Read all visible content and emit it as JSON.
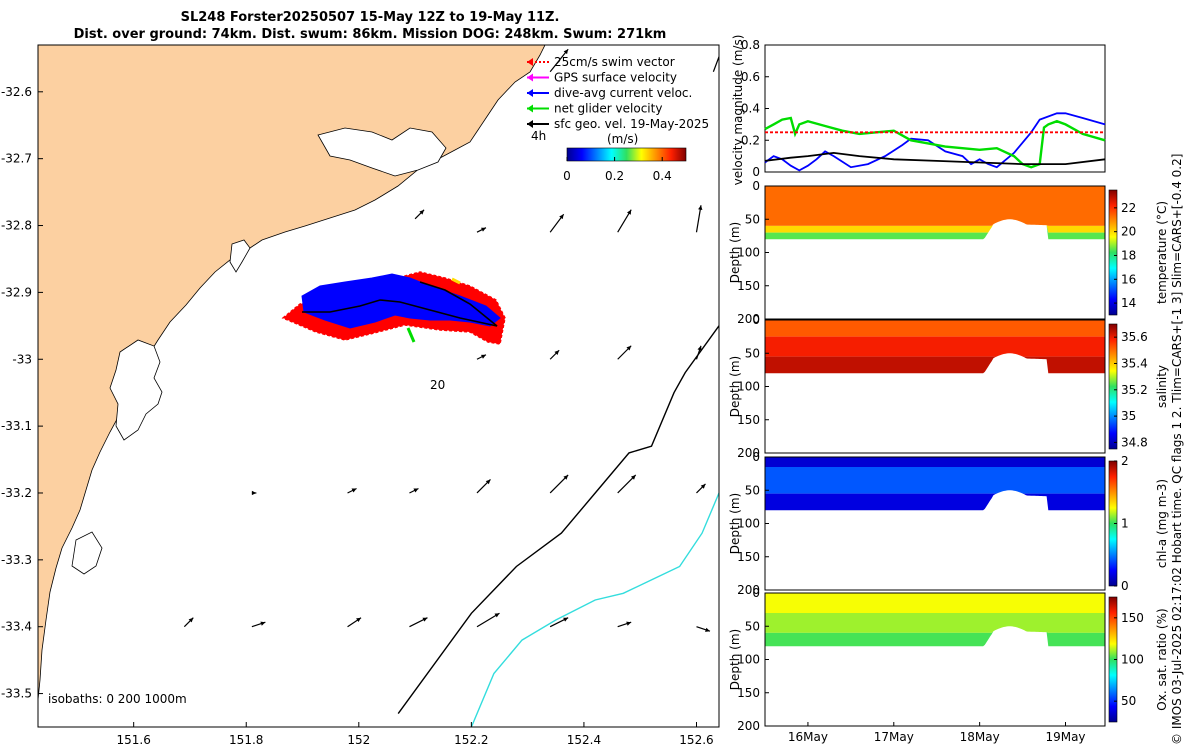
{
  "title_line1": "SL248 Forster20250507 15-May 12Z to 19-May 11Z.",
  "title_line2": "Dist. over ground: 74km. Dist. swum: 86km. Mission DOG: 248km. Swum: 271km",
  "credit": "© IMOS 03-Jul-2025 02:17:02 Hobart time. QC flags 1  2. Tlim=CARS+[-1 3] Slim=CARS+[-0.4 0.2]",
  "colors": {
    "land": "#fcd0a1",
    "swim_vector": "#ff0000",
    "gps_surface": "#ff00ff",
    "dive_avg": "#0000ff",
    "net_glider": "#00dd00",
    "sfc_geo": "#000000",
    "isobath_200": "#000000",
    "isobath_1000": "#33dddd"
  },
  "chart_data": [
    {
      "type": "map",
      "x_ticks": [
        "151.6",
        "151.8",
        "152",
        "152.2",
        "152.4",
        "152.6"
      ],
      "x_tick_values": [
        151.6,
        151.8,
        152.0,
        152.2,
        152.4,
        152.6
      ],
      "y_ticks": [
        "-32.6",
        "-32.7",
        "-32.8",
        "-32.9",
        "-33",
        "-33.1",
        "-33.2",
        "-33.3",
        "-33.4",
        "-33.5"
      ],
      "y_tick_values": [
        -32.6,
        -32.7,
        -32.8,
        -32.9,
        -33.0,
        -33.1,
        -33.2,
        -33.3,
        -33.4,
        -33.5
      ],
      "xlim": [
        151.43,
        152.64
      ],
      "ylim": [
        -33.55,
        -32.53
      ],
      "legend": [
        {
          "key": "swim_vector",
          "label": "25cm/s swim vector"
        },
        {
          "key": "gps_surface",
          "label": "GPS surface velocity"
        },
        {
          "key": "dive_avg",
          "label": "dive-avg current veloc."
        },
        {
          "key": "net_glider",
          "label": "net glider velocity"
        },
        {
          "key": "sfc_geo",
          "label": "sfc geo. vel. 19-May-2025"
        }
      ],
      "legend_time": "4h",
      "colorbar_label": "(m/s)",
      "colorbar_ticks": [
        "0",
        "0.2",
        "0.4"
      ],
      "colorbar_tick_values": [
        0,
        0.2,
        0.4
      ],
      "colorbar_range": [
        0,
        0.5
      ],
      "contour_label": "20",
      "isobaths_label": "isobaths: 0   200  1000m",
      "isobath_200": [
        [
          152.07,
          -33.53
        ],
        [
          152.2,
          -33.38
        ],
        [
          152.28,
          -33.31
        ],
        [
          152.36,
          -33.26
        ],
        [
          152.42,
          -33.2
        ],
        [
          152.48,
          -33.14
        ],
        [
          152.52,
          -33.13
        ],
        [
          152.56,
          -33.05
        ],
        [
          152.58,
          -33.02
        ],
        [
          152.64,
          -32.95
        ]
      ],
      "isobath_1000": [
        [
          152.2,
          -33.55
        ],
        [
          152.24,
          -33.47
        ],
        [
          152.29,
          -33.42
        ],
        [
          152.35,
          -33.39
        ],
        [
          152.42,
          -33.36
        ],
        [
          152.47,
          -33.35
        ],
        [
          152.52,
          -33.33
        ],
        [
          152.57,
          -33.31
        ],
        [
          152.61,
          -33.26
        ],
        [
          152.64,
          -33.2
        ]
      ],
      "geo_vectors": [
        [
          152.34,
          -32.57,
          0.04,
          0.05
        ],
        [
          152.63,
          -32.57,
          0.03,
          0.08
        ],
        [
          152.1,
          -32.79,
          0.02,
          0.02
        ],
        [
          152.21,
          -32.81,
          0.02,
          0.01
        ],
        [
          152.34,
          -32.81,
          0.03,
          0.04
        ],
        [
          152.46,
          -32.81,
          0.03,
          0.05
        ],
        [
          152.6,
          -32.81,
          0.01,
          0.06
        ],
        [
          152.21,
          -33.0,
          0.02,
          0.01
        ],
        [
          152.34,
          -33.0,
          0.02,
          0.02
        ],
        [
          152.46,
          -33.0,
          0.03,
          0.03
        ],
        [
          152.6,
          -33.0,
          0.01,
          0.03
        ],
        [
          151.81,
          -33.2,
          0.01,
          0.0
        ],
        [
          151.98,
          -33.2,
          0.02,
          0.01
        ],
        [
          152.09,
          -33.2,
          0.02,
          0.01
        ],
        [
          152.21,
          -33.2,
          0.03,
          0.03
        ],
        [
          152.34,
          -33.2,
          0.04,
          0.04
        ],
        [
          152.46,
          -33.2,
          0.04,
          0.04
        ],
        [
          152.6,
          -33.2,
          0.02,
          0.02
        ],
        [
          151.69,
          -33.4,
          0.02,
          0.02
        ],
        [
          151.81,
          -33.4,
          0.03,
          0.01
        ],
        [
          151.98,
          -33.4,
          0.03,
          0.02
        ],
        [
          152.09,
          -33.4,
          0.04,
          0.02
        ],
        [
          152.21,
          -33.4,
          0.05,
          0.03
        ],
        [
          152.34,
          -33.4,
          0.04,
          0.02
        ],
        [
          152.46,
          -33.4,
          0.03,
          0.01
        ],
        [
          152.6,
          -33.4,
          0.03,
          -0.01
        ]
      ]
    },
    {
      "type": "line",
      "ylabel": "velocity magnitude (m/s)",
      "ylim": [
        0,
        0.8
      ],
      "y_ticks": [
        "0",
        "0.2",
        "0.4",
        "0.6",
        "0.8"
      ],
      "y_tick_values": [
        0,
        0.2,
        0.4,
        0.6,
        0.8
      ],
      "xlim": [
        15.5,
        19.46
      ],
      "series": [
        {
          "name": "dive-avg current veloc.",
          "color": "#0000ff",
          "x": [
            15.5,
            15.6,
            15.7,
            15.8,
            15.9,
            16.0,
            16.1,
            16.2,
            16.3,
            16.5,
            16.7,
            16.9,
            17.1,
            17.2,
            17.4,
            17.6,
            17.8,
            17.9,
            18.0,
            18.1,
            18.2,
            18.4,
            18.6,
            18.7,
            18.9,
            19.0,
            19.2,
            19.46
          ],
          "y": [
            0.06,
            0.1,
            0.08,
            0.04,
            0.01,
            0.04,
            0.08,
            0.13,
            0.1,
            0.03,
            0.05,
            0.1,
            0.17,
            0.21,
            0.2,
            0.13,
            0.1,
            0.05,
            0.08,
            0.05,
            0.03,
            0.12,
            0.25,
            0.33,
            0.37,
            0.37,
            0.34,
            0.3
          ]
        },
        {
          "name": "net glider velocity",
          "color": "#00dd00",
          "x": [
            15.5,
            15.6,
            15.7,
            15.8,
            15.85,
            15.9,
            16.0,
            16.2,
            16.4,
            16.6,
            16.8,
            17.0,
            17.2,
            17.4,
            17.6,
            17.8,
            18.0,
            18.2,
            18.4,
            18.5,
            18.6,
            18.7,
            18.75,
            18.8,
            18.9,
            19.0,
            19.2,
            19.46
          ],
          "y": [
            0.27,
            0.3,
            0.33,
            0.34,
            0.24,
            0.3,
            0.32,
            0.29,
            0.26,
            0.24,
            0.25,
            0.26,
            0.2,
            0.18,
            0.16,
            0.15,
            0.14,
            0.15,
            0.1,
            0.05,
            0.03,
            0.05,
            0.28,
            0.3,
            0.32,
            0.3,
            0.24,
            0.2
          ]
        },
        {
          "name": "25cm/s swim vector",
          "color": "#ff0000",
          "dashed": true,
          "x": [
            15.5,
            19.46
          ],
          "y": [
            0.25,
            0.25
          ]
        },
        {
          "name": "sfc geo. vel. 19-May-2025",
          "color": "#000000",
          "x": [
            15.5,
            15.8,
            16.0,
            16.3,
            16.6,
            17.0,
            17.5,
            18.0,
            18.5,
            19.0,
            19.46
          ],
          "y": [
            0.07,
            0.09,
            0.1,
            0.12,
            0.1,
            0.08,
            0.07,
            0.06,
            0.05,
            0.05,
            0.08
          ]
        }
      ]
    },
    {
      "type": "heatmap",
      "ylabel": "Depth (m)",
      "cbar_label": "temperature (°C)",
      "cbar_ticks": [
        "14",
        "16",
        "18",
        "20",
        "22"
      ],
      "cbar_tick_values": [
        14,
        16,
        18,
        20,
        22
      ],
      "clim": [
        13,
        23.5
      ],
      "ylim": [
        0,
        200
      ],
      "y_ticks": [
        "0",
        "50",
        "100",
        "150",
        "200"
      ],
      "y_tick_values": [
        0,
        50,
        100,
        150,
        200
      ],
      "bands": [
        [
          0,
          60,
          21.3
        ],
        [
          60,
          70,
          20.0
        ],
        [
          70,
          80,
          18.5
        ]
      ]
    },
    {
      "type": "heatmap",
      "ylabel": "Depth (m)",
      "cbar_label": "salinity",
      "cbar_ticks": [
        "34.8",
        "35",
        "35.2",
        "35.4",
        "35.6"
      ],
      "cbar_tick_values": [
        34.8,
        35.0,
        35.2,
        35.4,
        35.6
      ],
      "clim": [
        34.75,
        35.7
      ],
      "ylim": [
        0,
        200
      ],
      "y_ticks": [
        "0",
        "50",
        "100",
        "150",
        "200"
      ],
      "y_tick_values": [
        0,
        50,
        100,
        150,
        200
      ],
      "bands": [
        [
          0,
          25,
          35.52
        ],
        [
          25,
          55,
          35.59
        ],
        [
          55,
          80,
          35.64
        ]
      ]
    },
    {
      "type": "heatmap",
      "ylabel": "Depth (m)",
      "cbar_label": "chl-a (mg m-3)",
      "cbar_ticks": [
        "0",
        "1",
        "2"
      ],
      "cbar_tick_values": [
        0,
        1,
        2
      ],
      "clim": [
        0,
        2
      ],
      "ylim": [
        0,
        200
      ],
      "y_ticks": [
        "0",
        "50",
        "100",
        "150",
        "200"
      ],
      "y_tick_values": [
        0,
        50,
        100,
        150,
        200
      ],
      "bands": [
        [
          0,
          15,
          0.15
        ],
        [
          15,
          55,
          0.42
        ],
        [
          55,
          80,
          0.18
        ]
      ]
    },
    {
      "type": "heatmap",
      "ylabel": "Depth (m)",
      "cbar_label": "Ox. sat. ratio (%)",
      "cbar_ticks": [
        "50",
        "100",
        "150"
      ],
      "cbar_tick_values": [
        50,
        100,
        150
      ],
      "clim": [
        25,
        175
      ],
      "ylim": [
        0,
        200
      ],
      "y_ticks": [
        "0",
        "50",
        "100",
        "150",
        "200"
      ],
      "y_tick_values": [
        0,
        50,
        100,
        150,
        200
      ],
      "bands": [
        [
          0,
          30,
          118
        ],
        [
          30,
          60,
          110
        ],
        [
          60,
          80,
          102
        ]
      ],
      "x_ticks": [
        "16May",
        "17May",
        "18May",
        "19May"
      ],
      "x_tick_values": [
        16,
        17,
        18,
        19
      ],
      "xlim": [
        15.5,
        19.46
      ]
    }
  ]
}
